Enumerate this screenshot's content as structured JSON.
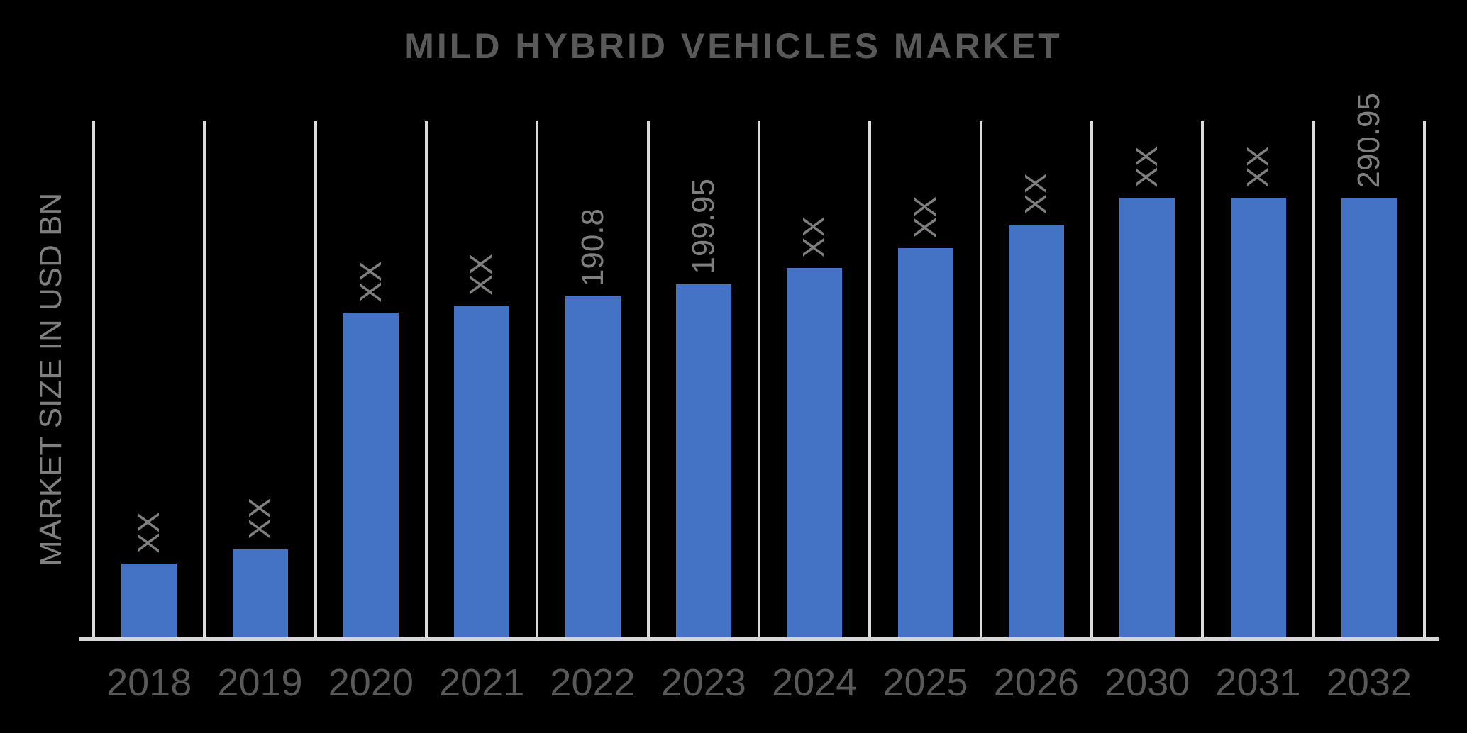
{
  "title": "MILD HYBRID VEHICLES MARKET",
  "y_axis_label": "MARKET SIZE IN USD BN",
  "colors": {
    "background": "#000000",
    "bar": "#4472c4",
    "title_text": "#595959",
    "tick_label_text": "#595959",
    "data_label_text": "#7f7f7f",
    "gridline": "#dcdcdc",
    "baseline": "#d6d6d6"
  },
  "chart_data": {
    "type": "bar",
    "title": "MILD HYBRID VEHICLES MARKET",
    "xlabel": "",
    "ylabel": "MARKET SIZE IN USD BN",
    "units": "USD BN",
    "legend": false,
    "grid": "vertical category separators",
    "data_label_rotation_deg": 90,
    "categories": [
      "2018",
      "2019",
      "2020",
      "2021",
      "2022",
      "2023",
      "2024",
      "2025",
      "2026",
      "2030",
      "2031",
      "2032"
    ],
    "bar_labels": [
      "XX",
      "XX",
      "XX",
      "XX",
      "190.8",
      "199.95",
      "XX",
      "XX",
      "XX",
      "XX",
      "XX",
      "290.95"
    ],
    "known_values": {
      "2022": 190.8,
      "2023": 199.95,
      "2032": 290.95
    },
    "masked_value_placeholder": "XX",
    "bar_height_pct_of_plot": [
      14.6,
      17.4,
      63.1,
      64.4,
      66.2,
      68.5,
      71.7,
      75.5,
      80.0,
      85.2,
      85.2,
      85.1
    ]
  }
}
